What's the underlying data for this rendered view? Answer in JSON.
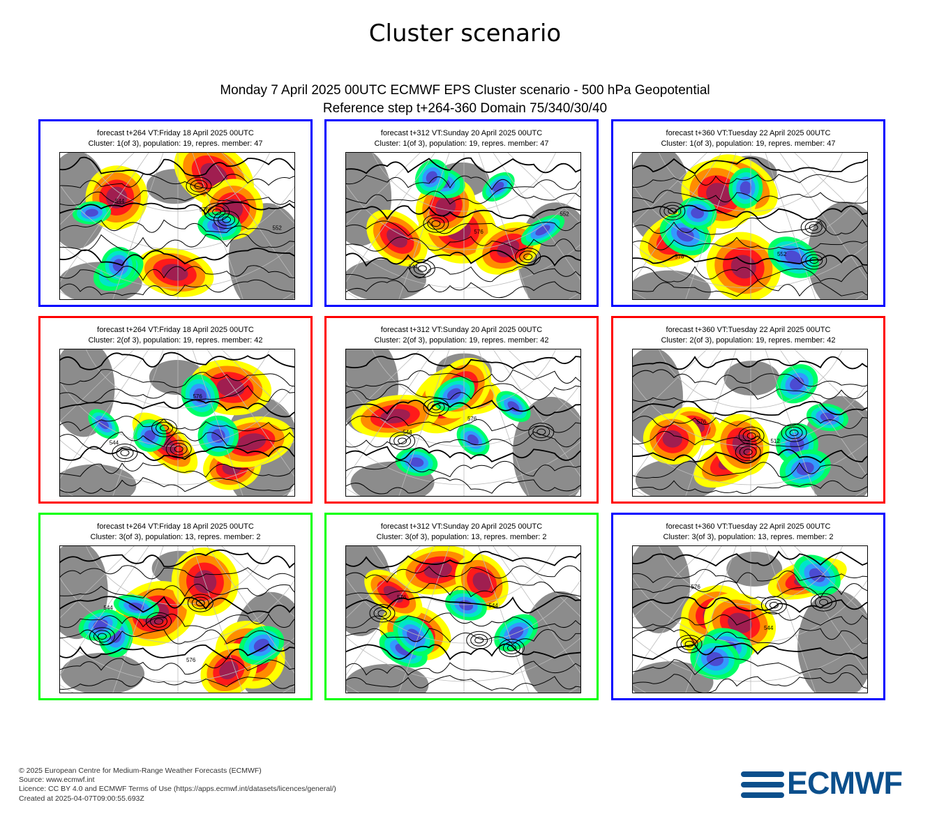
{
  "page": {
    "title": "Cluster scenario",
    "subtitle_line1": "Monday 7 April 2025 00UTC ECMWF EPS Cluster scenario - 500 hPa Geopotential",
    "subtitle_line2": "Reference step t+264-360 Domain 75/340/30/40"
  },
  "colors": {
    "blue_frame": "#0000ff",
    "red_frame": "#ff0000",
    "green_frame": "#00ff00",
    "land": "#8c8c8c",
    "anomaly_warm": [
      "#ffff00",
      "#ff8c00",
      "#ff1a1a",
      "#a01e50"
    ],
    "anomaly_cold": [
      "#00ff66",
      "#00e6c8",
      "#3399ff",
      "#4b4bd2"
    ]
  },
  "panels": [
    {
      "line1": "forecast t+264 VT:Friday 18 April 2025 00UTC",
      "line2": "Cluster: 1(of 3), population: 19, repres. member: 47",
      "frame_color": "#0000ff",
      "map_labels": [
        "544",
        "576",
        "552"
      ]
    },
    {
      "line1": "forecast t+312 VT:Sunday 20 April 2025 00UTC",
      "line2": "Cluster: 1(of 3), population: 19, repres. member: 47",
      "frame_color": "#0000ff",
      "map_labels": [
        "544",
        "576",
        "552"
      ]
    },
    {
      "line1": "forecast t+360 VT:Tuesday 22 April 2025 00UTC",
      "line2": "Cluster: 1(of 3), population: 19, repres. member: 47",
      "frame_color": "#0000ff",
      "map_labels": [
        "576",
        "552"
      ]
    },
    {
      "line1": "forecast t+264 VT:Friday 18 April 2025 00UTC",
      "line2": "Cluster: 2(of 3), population: 19, repres. member: 42",
      "frame_color": "#ff0000",
      "map_labels": [
        "544",
        "576"
      ]
    },
    {
      "line1": "forecast t+312 VT:Sunday 20 April 2025 00UTC",
      "line2": "Cluster: 2(of 3), population: 19, repres. member: 42",
      "frame_color": "#ff0000",
      "map_labels": [
        "544",
        "576"
      ]
    },
    {
      "line1": "forecast t+360 VT:Tuesday 22 April 2025 00UTC",
      "line2": "Cluster: 2(of 3), population: 19, repres. member: 42",
      "frame_color": "#ff0000",
      "map_labels": [
        "576",
        "512"
      ]
    },
    {
      "line1": "forecast t+264 VT:Friday 18 April 2025 00UTC",
      "line2": "Cluster: 3(of 3), population: 13, repres. member: 2",
      "frame_color": "#00ff00",
      "map_labels": [
        "544",
        "576"
      ]
    },
    {
      "line1": "forecast t+312 VT:Sunday 20 April 2025 00UTC",
      "line2": "Cluster: 3(of 3), population: 13, repres. member: 2",
      "frame_color": "#00ff00",
      "map_labels": [
        "576",
        "544"
      ]
    },
    {
      "line1": "forecast t+360 VT:Tuesday 22 April 2025 00UTC",
      "line2": "Cluster: 3(of 3), population: 13, repres. member: 2",
      "frame_color": "#0000ff",
      "map_labels": [
        "576",
        "544"
      ]
    }
  ],
  "footer": {
    "line1": "© 2025 European Centre for Medium-Range Weather Forecasts (ECMWF)",
    "line2": "Source: www.ecmwf.int",
    "line3": "Licence: CC BY 4.0 and ECMWF Terms of Use (https://apps.ecmwf.int/datasets/licences/general/)",
    "line4": "Created at 2025-04-07T09:00:55.693Z"
  },
  "logo": {
    "text": "ECMWF",
    "icon": "ecmwf-logo-icon"
  }
}
